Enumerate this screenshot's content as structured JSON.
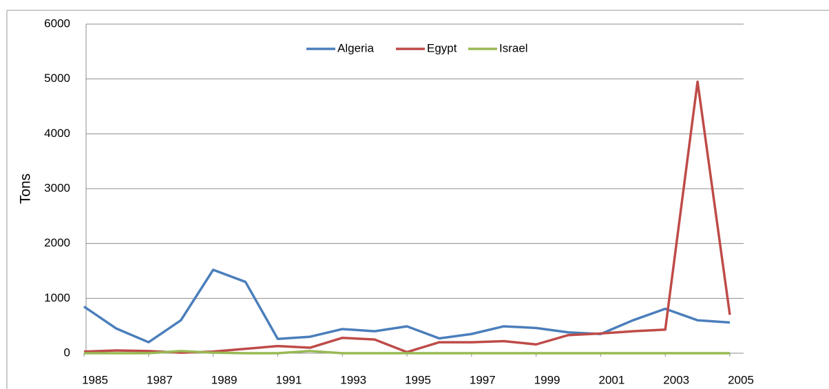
{
  "chart_data": {
    "type": "line",
    "y_label": "Tons",
    "x": [
      1985,
      1986,
      1987,
      1988,
      1989,
      1990,
      1991,
      1992,
      1993,
      1994,
      1995,
      1996,
      1997,
      1998,
      1999,
      2000,
      2001,
      2002,
      2003,
      2004,
      2005
    ],
    "xlim": [
      1985,
      2005
    ],
    "xticks": [
      1985,
      1987,
      1989,
      1991,
      1993,
      1995,
      1997,
      1999,
      2001,
      2003,
      2005
    ],
    "ylim": [
      0,
      6000
    ],
    "yticks": [
      0,
      1000,
      2000,
      3000,
      4000,
      5000,
      6000
    ],
    "grid": true,
    "legend": "top",
    "series": [
      {
        "name": "Algeria",
        "color": "#4a7ebb",
        "values": [
          850,
          450,
          200,
          600,
          1520,
          1300,
          260,
          300,
          440,
          400,
          490,
          270,
          350,
          490,
          460,
          380,
          350,
          600,
          810,
          600,
          560
        ]
      },
      {
        "name": "Egypt",
        "color": "#be4b48",
        "values": [
          30,
          50,
          40,
          10,
          30,
          80,
          130,
          100,
          280,
          250,
          20,
          200,
          200,
          220,
          160,
          330,
          360,
          400,
          430,
          4950,
          700
        ]
      },
      {
        "name": "Israel",
        "color": "#98b954",
        "values": [
          0,
          0,
          0,
          40,
          10,
          0,
          0,
          40,
          0,
          0,
          0,
          0,
          0,
          0,
          0,
          0,
          0,
          0,
          0,
          0,
          0
        ]
      }
    ]
  }
}
